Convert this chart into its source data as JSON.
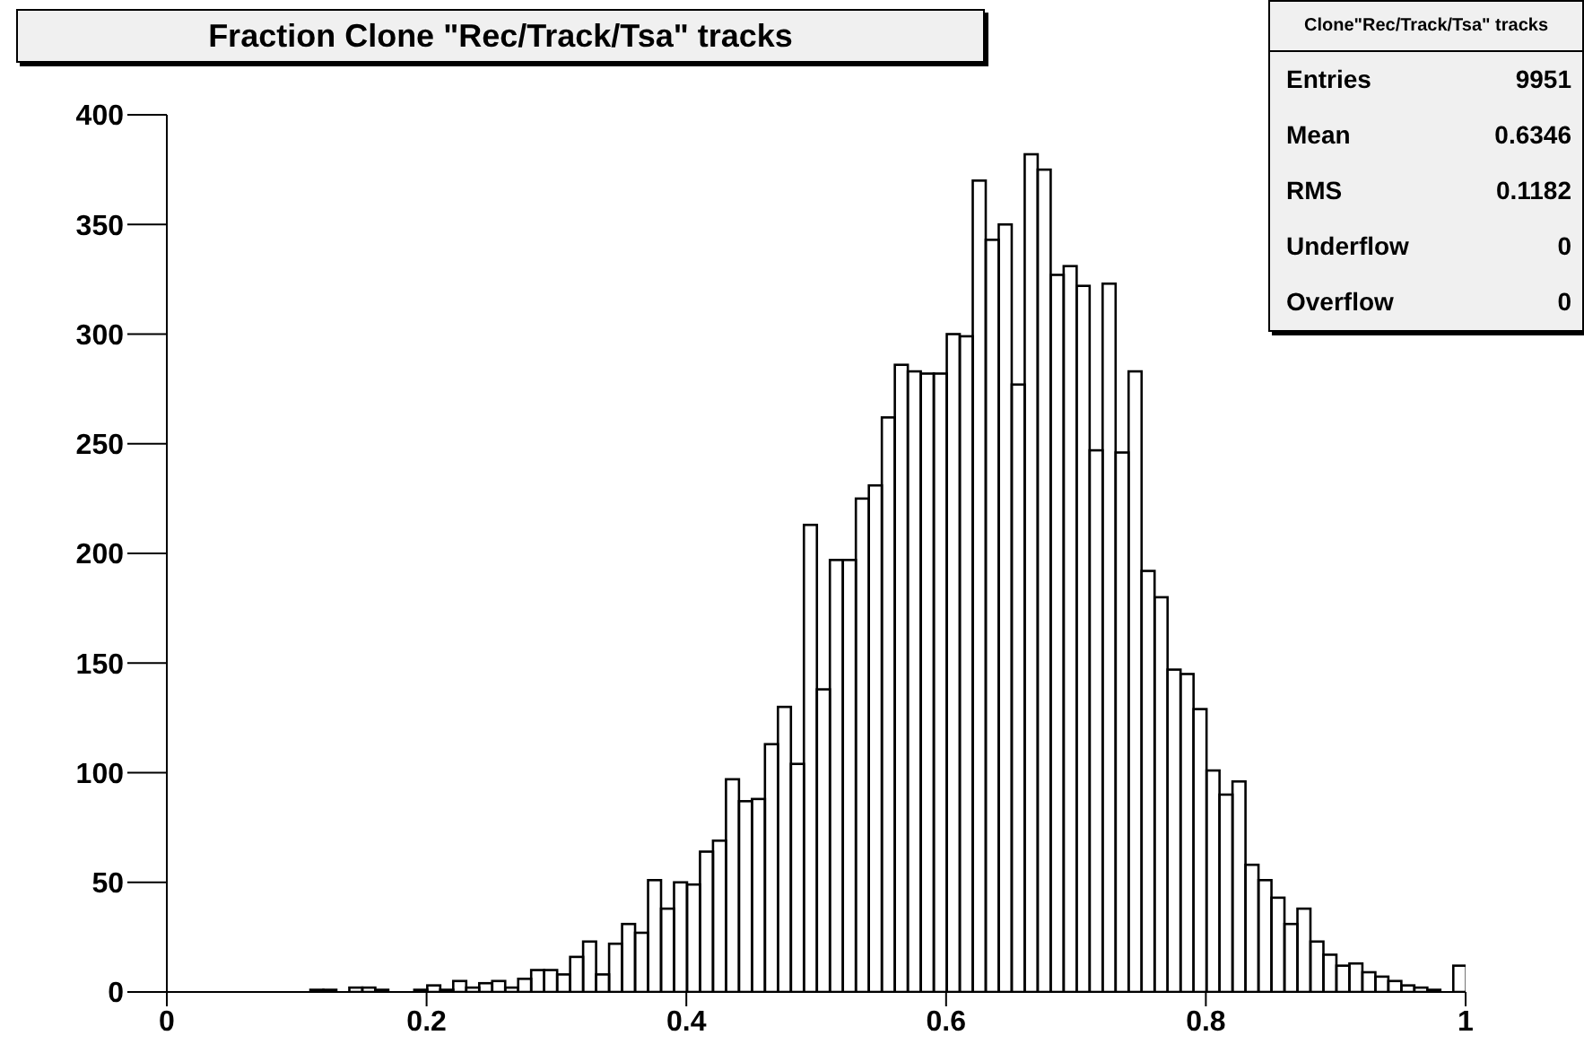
{
  "chart_data": {
    "type": "histogram",
    "title": "Fraction Clone \"Rec/Track/Tsa\" tracks",
    "bins": [
      0,
      0.01,
      0.02,
      0.03,
      0.04,
      0.05,
      0.06,
      0.07,
      0.08,
      0.09,
      0.1,
      0.11,
      0.12,
      0.13,
      0.14,
      0.15,
      0.16,
      0.17,
      0.18,
      0.19,
      0.2,
      0.21,
      0.22,
      0.23,
      0.24,
      0.25,
      0.26,
      0.27,
      0.28,
      0.29,
      0.3,
      0.31,
      0.32,
      0.33,
      0.34,
      0.35,
      0.36,
      0.37,
      0.38,
      0.39,
      0.4,
      0.41,
      0.42,
      0.43,
      0.44,
      0.45,
      0.46,
      0.47,
      0.48,
      0.49,
      0.5,
      0.51,
      0.52,
      0.53,
      0.54,
      0.55,
      0.56,
      0.57,
      0.58,
      0.59,
      0.6,
      0.61,
      0.62,
      0.63,
      0.64,
      0.65,
      0.66,
      0.67,
      0.68,
      0.69,
      0.7,
      0.71,
      0.72,
      0.73,
      0.74,
      0.75,
      0.76,
      0.77,
      0.78,
      0.79,
      0.8,
      0.81,
      0.82,
      0.83,
      0.84,
      0.85,
      0.86,
      0.87,
      0.88,
      0.89,
      0.9,
      0.91,
      0.92,
      0.93,
      0.94,
      0.95,
      0.96,
      0.97,
      0.98,
      0.99,
      1
    ],
    "values": [
      0,
      0,
      0,
      0,
      0,
      0,
      0,
      0,
      0,
      0,
      0,
      1,
      1,
      0,
      2,
      2,
      1,
      0,
      0,
      1,
      3,
      1,
      5,
      2,
      4,
      5,
      2,
      6,
      10,
      10,
      8,
      16,
      23,
      8,
      22,
      31,
      27,
      51,
      38,
      50,
      49,
      64,
      69,
      97,
      87,
      88,
      113,
      130,
      104,
      213,
      138,
      197,
      197,
      225,
      231,
      262,
      286,
      283,
      282,
      282,
      300,
      299,
      370,
      343,
      350,
      277,
      382,
      375,
      327,
      331,
      322,
      247,
      323,
      246,
      283,
      192,
      180,
      147,
      145,
      129,
      101,
      90,
      96,
      58,
      51,
      43,
      31,
      38,
      23,
      17,
      12,
      13,
      9,
      7,
      5,
      3,
      2,
      1,
      0,
      12
    ],
    "color": "#000000",
    "xlim": [
      0,
      1
    ],
    "xticks": [
      0,
      0.2,
      0.4,
      0.6,
      0.8,
      1
    ],
    "ylim": [
      0,
      400
    ],
    "yticks": [
      0,
      50,
      100,
      150,
      200,
      250,
      300,
      350,
      400
    ],
    "annotations": [
      "Clone\"Rec/Track/Tsa\" tracks",
      "Entries",
      "9951",
      "Mean",
      "0.6346",
      "RMS",
      "0.1182",
      "Underflow",
      "0",
      "Overflow",
      "0"
    ]
  }
}
